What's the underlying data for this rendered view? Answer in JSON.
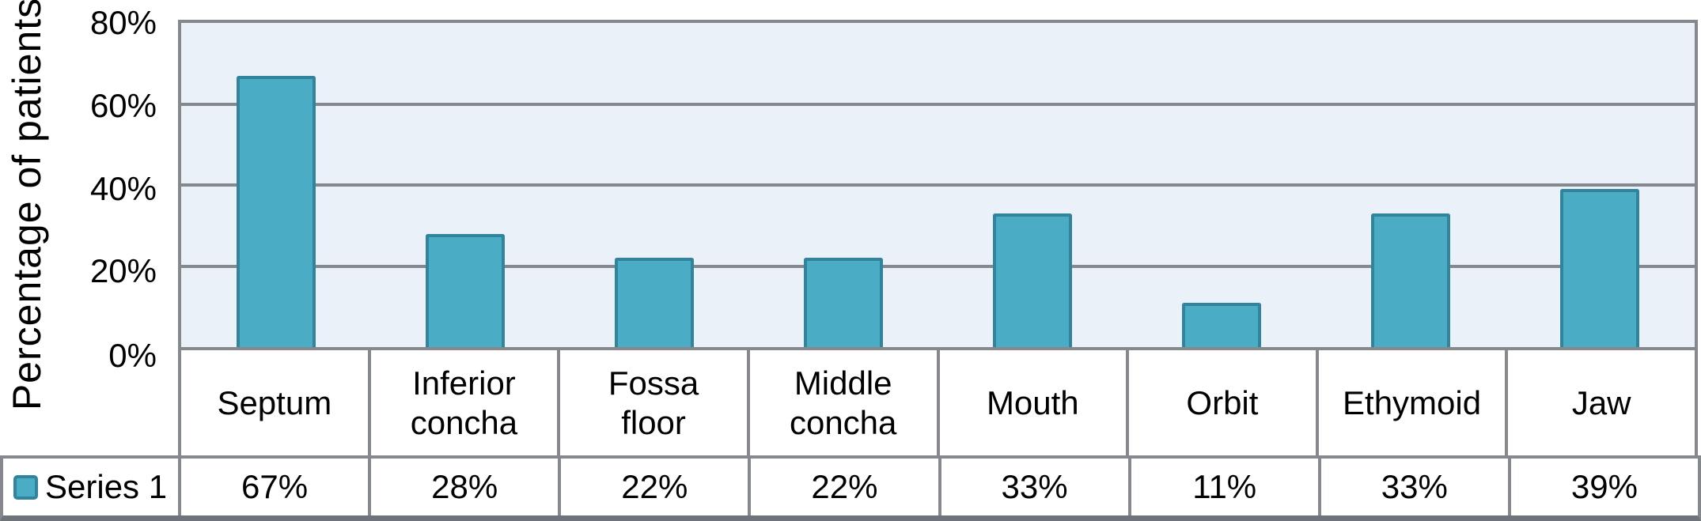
{
  "chart_data": {
    "type": "bar",
    "title": "",
    "xlabel": "",
    "ylabel": "Percentage of patients",
    "ylim": [
      0,
      80
    ],
    "ytick_labels": [
      "80%",
      "60%",
      "40%",
      "20%",
      "0%"
    ],
    "categories": [
      "Septum",
      "Inferior concha",
      "Fossa floor",
      "Middle concha",
      "Mouth",
      "Orbit",
      "Ethymoid",
      "Jaw"
    ],
    "series": [
      {
        "name": "Series 1",
        "values": [
          67,
          28,
          22,
          22,
          33,
          11,
          33,
          39
        ]
      }
    ],
    "values": [
      67,
      28,
      22,
      22,
      33,
      11,
      33,
      39
    ],
    "display_values": [
      "67%",
      "28%",
      "22%",
      "22%",
      "33%",
      "11%",
      "33%",
      "39%"
    ],
    "grid": true,
    "legend_position": "bottom-table"
  },
  "table": {
    "category_labels": [
      "Septum",
      "Inferior\nconcha",
      "Fossa\nfloor",
      "Middle\nconcha",
      "Mouth",
      "Orbit",
      "Ethymoid",
      "Jaw"
    ],
    "series_label": "Series 1"
  },
  "colors": {
    "bar_fill": "#4BACC6",
    "bar_border": "#31849B",
    "plot_bg": "#EAF1F8",
    "grid": "#85898E",
    "bottom_border": "#6F747A",
    "text": "#000000",
    "page_bg": "#FFFFFF"
  }
}
